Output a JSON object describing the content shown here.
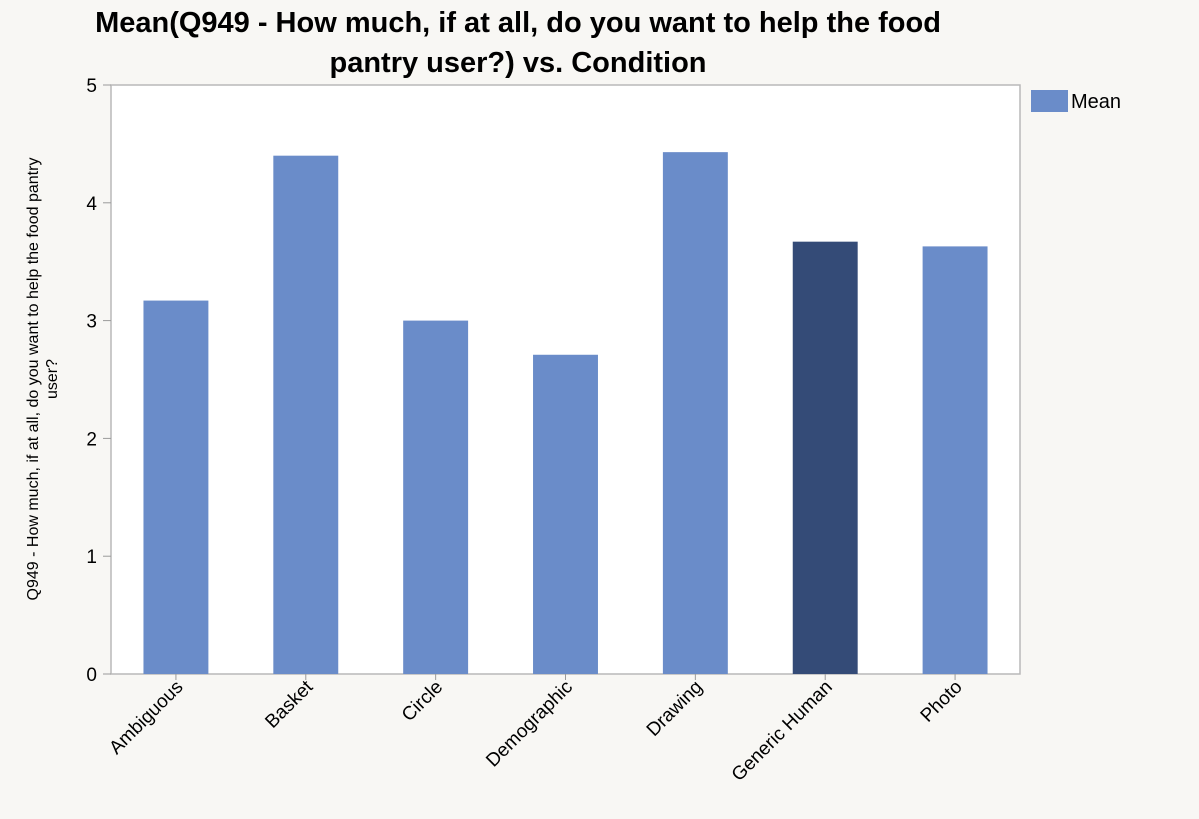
{
  "chart_data": {
    "type": "bar",
    "title_lines": [
      "Mean(Q949 - How much, if at all, do you want to help the food",
      "pantry user?) vs. Condition"
    ],
    "xlabel": "",
    "ylabel_lines": [
      "Q949 - How much, if at all, do you want to help the food pantry",
      "user?"
    ],
    "categories": [
      "Ambiguous",
      "Basket",
      "Circle",
      "Demographic",
      "Drawing",
      "Generic Human",
      "Photo"
    ],
    "series": [
      {
        "name": "Mean",
        "values": [
          3.17,
          4.4,
          3.0,
          2.71,
          4.43,
          3.67,
          3.63
        ],
        "color": "#6a8cc9"
      }
    ],
    "highlighted_category": "Generic Human",
    "highlight_color": "#344b77",
    "ylim": [
      0,
      5
    ],
    "yticks": [
      "0",
      "1",
      "2",
      "3",
      "4",
      "5"
    ],
    "grid": false,
    "legend": {
      "position": "top-right",
      "entries": [
        "Mean"
      ]
    },
    "colors": {
      "page_background": "#f8f7f4",
      "plot_background": "#ffffff",
      "frame": "#b9b9b9"
    }
  }
}
